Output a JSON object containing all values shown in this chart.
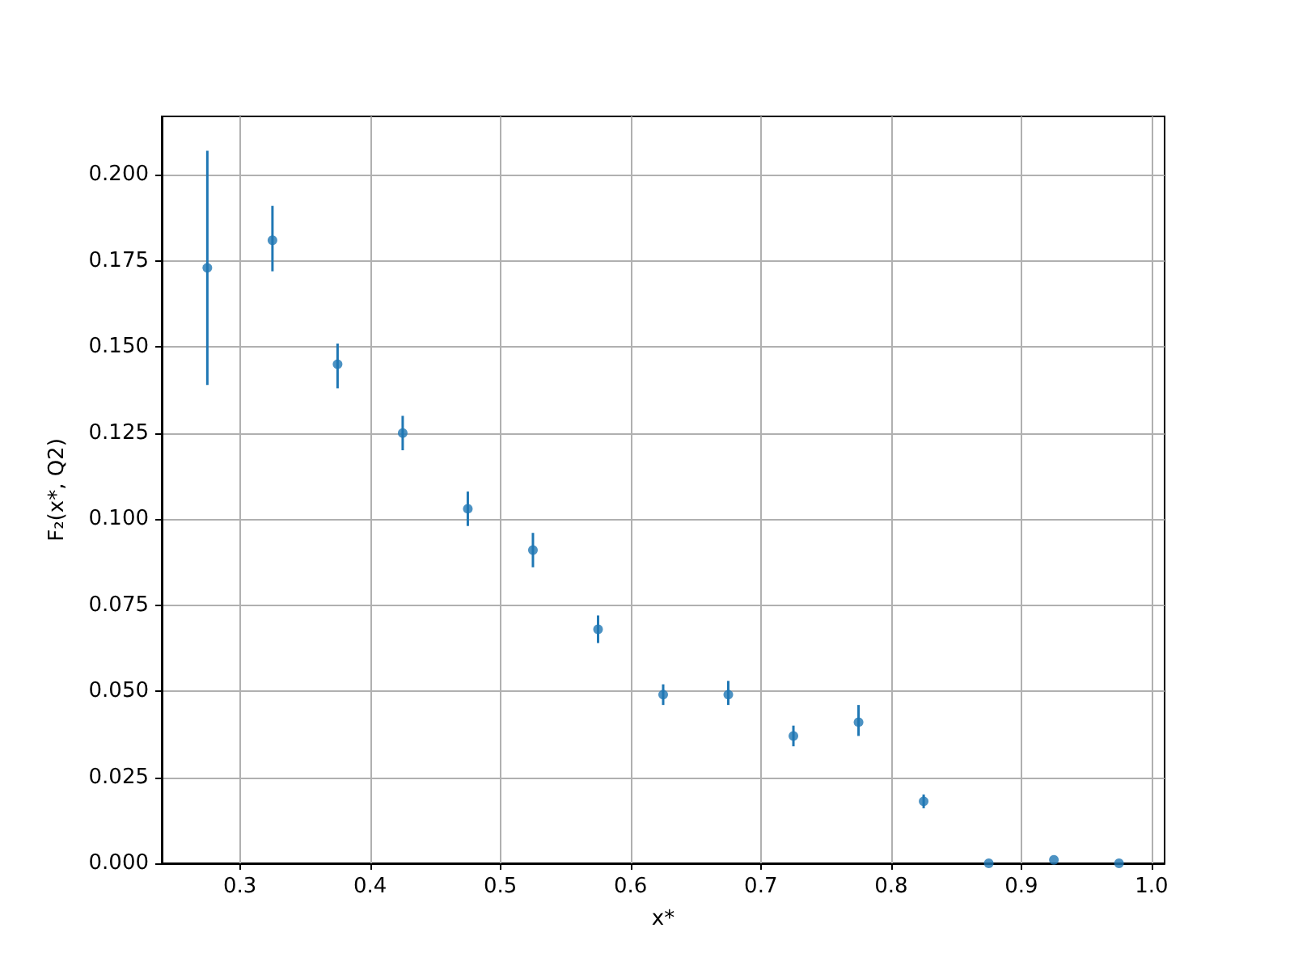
{
  "chart_data": {
    "type": "scatter",
    "xlabel": "x*",
    "ylabel": "F₂(x*, Q2)",
    "x": [
      0.275,
      0.325,
      0.375,
      0.425,
      0.475,
      0.525,
      0.575,
      0.625,
      0.675,
      0.725,
      0.775,
      0.825,
      0.875,
      0.925,
      0.975
    ],
    "values": [
      0.173,
      0.181,
      0.145,
      0.125,
      0.103,
      0.091,
      0.068,
      0.049,
      0.049,
      0.037,
      0.041,
      0.018,
      0.0,
      0.001,
      0.0
    ],
    "errors": [
      [
        0.139,
        0.207
      ],
      [
        0.172,
        0.191
      ],
      [
        0.138,
        0.151
      ],
      [
        0.12,
        0.13
      ],
      [
        0.098,
        0.108
      ],
      [
        0.086,
        0.096
      ],
      [
        0.064,
        0.072
      ],
      [
        0.046,
        0.052
      ],
      [
        0.046,
        0.053
      ],
      [
        0.034,
        0.04
      ],
      [
        0.037,
        0.046
      ],
      [
        0.016,
        0.02
      ],
      null,
      null,
      null
    ],
    "color": "#1f77b4",
    "marker": "circle",
    "xlim": [
      0.24,
      1.01
    ],
    "xticks": [
      0.3,
      0.4,
      0.5,
      0.6,
      0.7,
      0.8,
      0.9,
      {
        "value": 1,
        "label": "1.0"
      }
    ],
    "ylim": [
      0,
      0.217
    ],
    "yticks": [
      {
        "value": 0,
        "label": "0.000"
      },
      0.025,
      {
        "value": 0.05,
        "label": "0.050"
      },
      0.075,
      {
        "value": 0.1,
        "label": "0.100"
      },
      0.125,
      {
        "value": 0.15,
        "label": "0.150"
      },
      0.175,
      {
        "value": 0.2,
        "label": "0.200"
      }
    ],
    "grid": true
  }
}
